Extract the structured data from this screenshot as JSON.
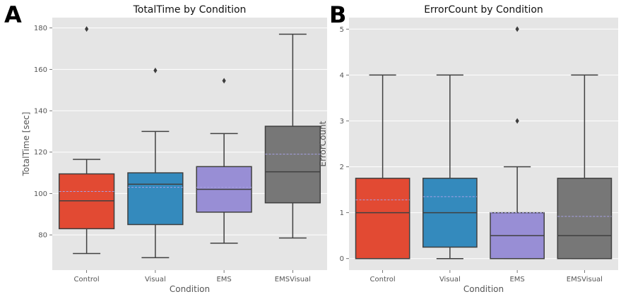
{
  "chart_data": [
    {
      "panel_label": "A",
      "type": "box",
      "title": "TotalTime by Condition",
      "xlabel": "Condition",
      "ylabel": "TotalTime [sec]",
      "ylim": [
        63,
        185
      ],
      "yticks": [
        80,
        100,
        120,
        140,
        160,
        180
      ],
      "categories": [
        "Control",
        "Visual",
        "EMS",
        "EMSVisual"
      ],
      "colors": [
        "#e24a33",
        "#348abd",
        "#988ed5",
        "#777777"
      ],
      "grid": true,
      "boxes": [
        {
          "category": "Control",
          "whisker_low": 71,
          "q1": 83,
          "median": 96.5,
          "q3": 109.5,
          "whisker_high": 116.5,
          "mean": 101,
          "outliers": [
            179.5
          ]
        },
        {
          "category": "Visual",
          "whisker_low": 69,
          "q1": 85,
          "median": 104.5,
          "q3": 110,
          "whisker_high": 130,
          "mean": 103,
          "outliers": [
            159.5
          ]
        },
        {
          "category": "EMS",
          "whisker_low": 76,
          "q1": 91,
          "median": 102,
          "q3": 113,
          "whisker_high": 129,
          "mean": 103,
          "outliers": [
            154.5
          ]
        },
        {
          "category": "EMSVisual",
          "whisker_low": 78.5,
          "q1": 95.5,
          "median": 110.5,
          "q3": 132.5,
          "whisker_high": 177,
          "mean": 119,
          "outliers": []
        }
      ]
    },
    {
      "panel_label": "B",
      "type": "box",
      "title": "ErrorCount by Condition",
      "xlabel": "Condition",
      "ylabel": "ErrorCount",
      "ylim": [
        -0.25,
        5.25
      ],
      "yticks": [
        0,
        1,
        2,
        3,
        4,
        5
      ],
      "categories": [
        "Control",
        "Visual",
        "EMS",
        "EMSVisual"
      ],
      "colors": [
        "#e24a33",
        "#348abd",
        "#988ed5",
        "#777777"
      ],
      "grid": true,
      "boxes": [
        {
          "category": "Control",
          "whisker_low": 0,
          "q1": 0,
          "median": 1,
          "q3": 1.75,
          "whisker_high": 4,
          "mean": 1.28,
          "outliers": []
        },
        {
          "category": "Visual",
          "whisker_low": 0,
          "q1": 0.25,
          "median": 1,
          "q3": 1.75,
          "whisker_high": 4,
          "mean": 1.35,
          "outliers": []
        },
        {
          "category": "EMS",
          "whisker_low": 0,
          "q1": 0,
          "median": 0.5,
          "q3": 1,
          "whisker_high": 2,
          "mean": 1,
          "outliers": [
            3,
            5
          ]
        },
        {
          "category": "EMSVisual",
          "whisker_low": 0,
          "q1": 0,
          "median": 0.5,
          "q3": 1.75,
          "whisker_high": 4,
          "mean": 0.92,
          "outliers": []
        }
      ]
    }
  ]
}
